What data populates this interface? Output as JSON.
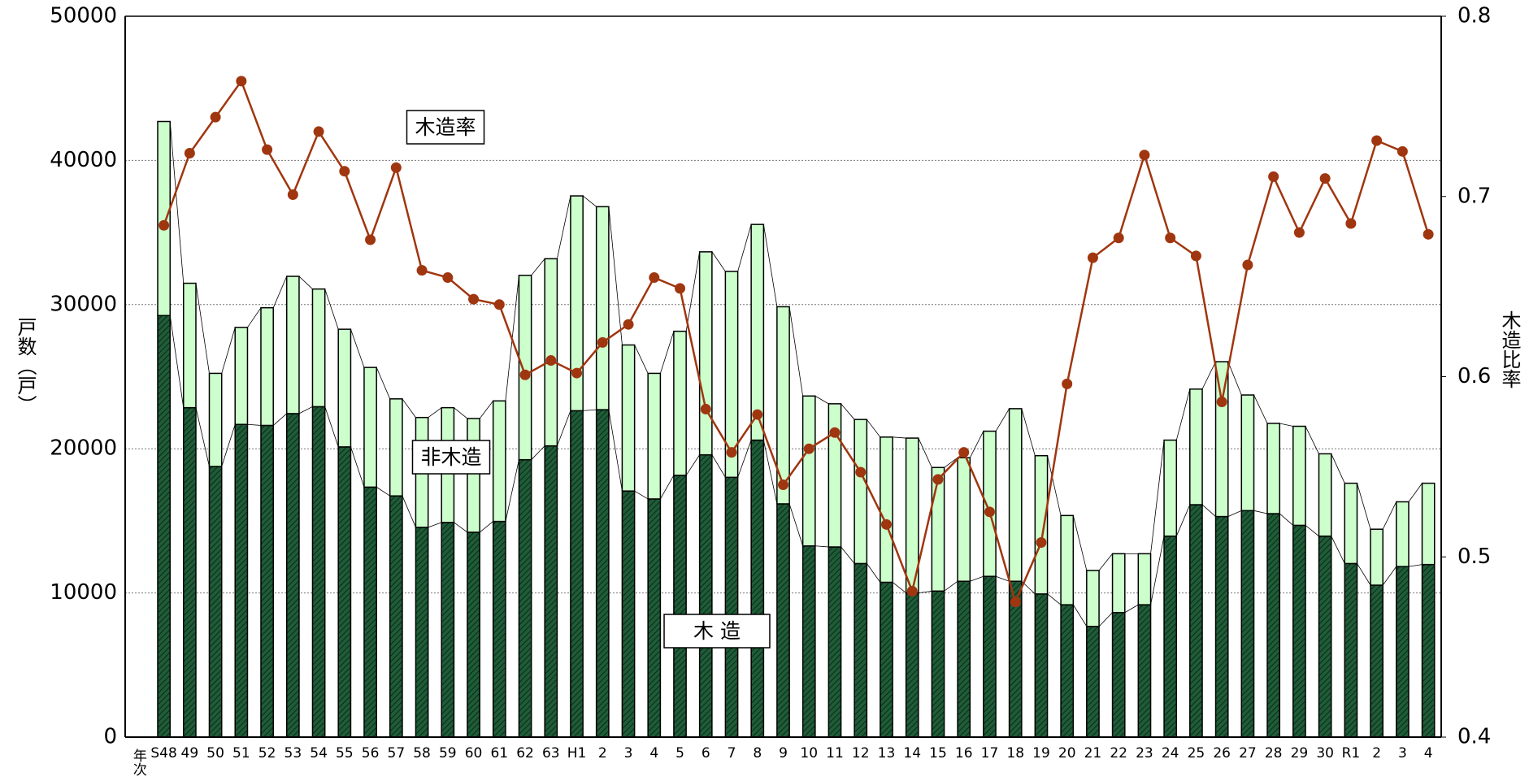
{
  "chart_data": {
    "type": "bar",
    "xlabel": "年次",
    "ylabel": "戸数（戸）",
    "y2label": "木造比率",
    "categories": [
      "S48",
      "49",
      "50",
      "51",
      "52",
      "53",
      "54",
      "55",
      "56",
      "57",
      "58",
      "59",
      "60",
      "61",
      "62",
      "63",
      "H1",
      "2",
      "3",
      "4",
      "5",
      "6",
      "7",
      "8",
      "9",
      "10",
      "11",
      "12",
      "13",
      "14",
      "15",
      "16",
      "17",
      "18",
      "19",
      "20",
      "21",
      "22",
      "23",
      "24",
      "25",
      "26",
      "27",
      "28",
      "29",
      "30",
      "R1",
      "2",
      "3",
      "4"
    ],
    "series": [
      {
        "name": "木 造",
        "type": "bar",
        "color": "#1f5c38",
        "values": [
          29240,
          22850,
          18770,
          21690,
          21620,
          22440,
          22920,
          20130,
          17340,
          16730,
          14550,
          14890,
          14210,
          14960,
          19240,
          20200,
          22640,
          22710,
          17070,
          16520,
          18160,
          19580,
          18020,
          20600,
          16180,
          13260,
          13190,
          12040,
          10740,
          10000,
          10130,
          10810,
          11150,
          10810,
          9930,
          9180,
          7680,
          8640,
          9180,
          13940,
          16120,
          15300,
          15710,
          15500,
          14690,
          13940,
          12040,
          10540,
          11830,
          11970
        ]
      },
      {
        "name": "非木造",
        "type": "bar",
        "color": "#ccffcc",
        "values": [
          13460,
          8630,
          6460,
          6730,
          8160,
          9520,
          8160,
          8160,
          8300,
          6730,
          7620,
          7960,
          7890,
          8360,
          12790,
          12980,
          14900,
          14080,
          10130,
          8710,
          9990,
          14080,
          14280,
          14960,
          13670,
          10400,
          9930,
          9990,
          10070,
          10740,
          8570,
          8570,
          10070,
          11970,
          9590,
          6190,
          3880,
          4080,
          3540,
          6660,
          8020,
          10740,
          8020,
          6260,
          6870,
          5710,
          5570,
          3880,
          4490,
          5640
        ]
      },
      {
        "name": "木造率",
        "type": "line",
        "axis": "y2",
        "color": "#a0360f",
        "values": [
          0.684,
          0.724,
          0.744,
          0.764,
          0.726,
          0.701,
          0.736,
          0.714,
          0.676,
          0.716,
          0.659,
          0.655,
          0.643,
          0.64,
          0.601,
          0.609,
          0.602,
          0.619,
          0.629,
          0.655,
          0.649,
          0.582,
          0.558,
          0.579,
          0.54,
          0.56,
          0.569,
          0.547,
          0.518,
          0.481,
          0.543,
          0.558,
          0.525,
          0.475,
          0.508,
          0.596,
          0.666,
          0.677,
          0.723,
          0.677,
          0.667,
          0.586,
          0.662,
          0.711,
          0.68,
          0.71,
          0.685,
          0.731,
          0.725,
          0.679
        ]
      }
    ],
    "ylim": [
      0,
      50000
    ],
    "yticks": [
      0,
      10000,
      20000,
      30000,
      40000,
      50000
    ],
    "y2lim": [
      0.4,
      0.8
    ],
    "y2ticks": [
      0.4,
      0.5,
      0.6,
      0.7,
      0.8
    ],
    "grid": true
  }
}
